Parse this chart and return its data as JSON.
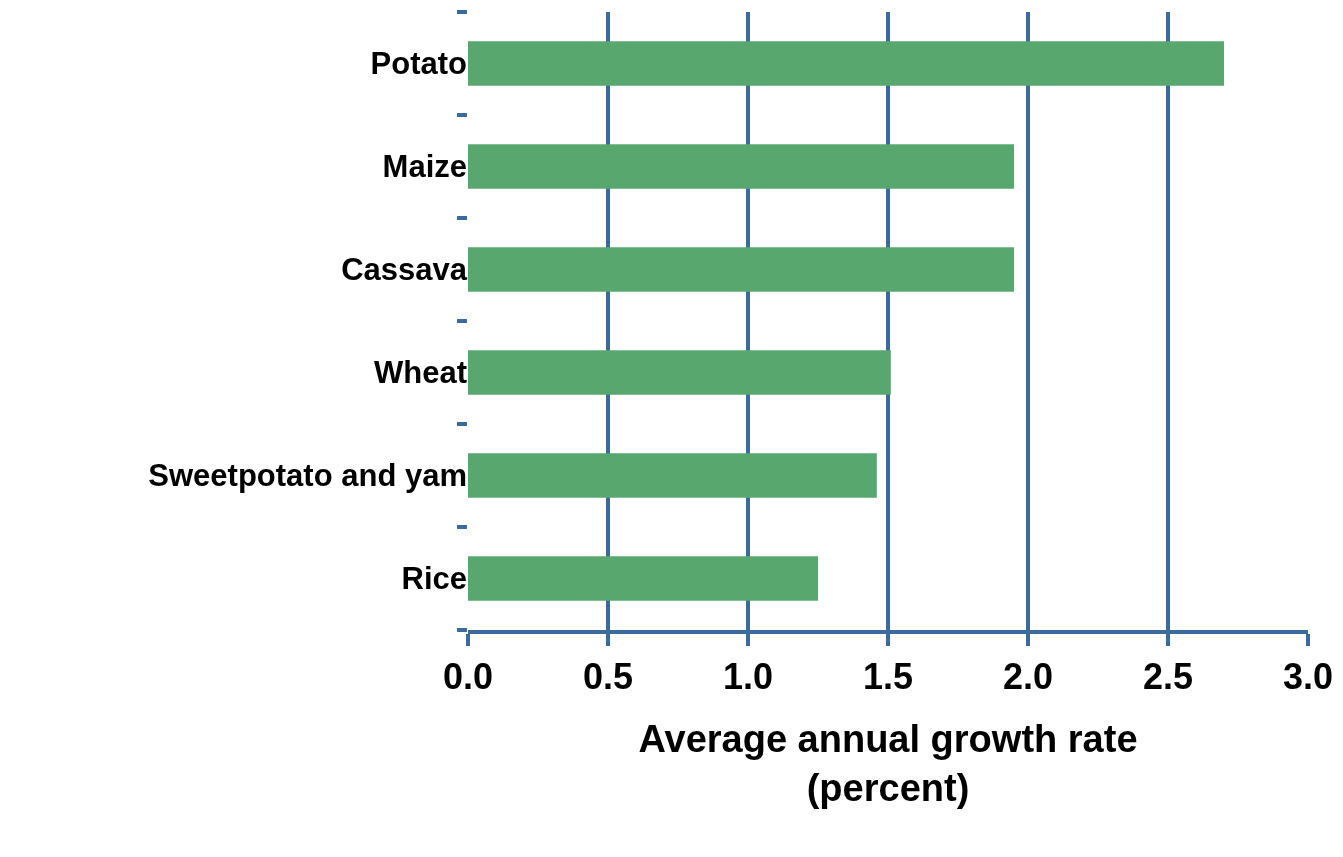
{
  "chart_data": {
    "type": "bar",
    "orientation": "horizontal",
    "categories": [
      "Potato",
      "Maize",
      "Cassava",
      "Wheat",
      "Sweetpotato and yam",
      "Rice"
    ],
    "values": [
      2.7,
      1.95,
      1.95,
      1.51,
      1.46,
      1.25
    ],
    "color": "#58a76f",
    "xlim": [
      0,
      3
    ],
    "xticks": [
      {
        "value": 0,
        "label": "0.0"
      },
      {
        "value": 0.5,
        "label": "0.5"
      },
      {
        "value": 1,
        "label": "1.0"
      },
      {
        "value": 1.5,
        "label": "1.5"
      },
      {
        "value": 2,
        "label": "2.0"
      },
      {
        "value": 2.5,
        "label": "2.5"
      },
      {
        "value": 3,
        "label": "3.0"
      }
    ],
    "xlabel": "Average annual growth rate\n(percent)",
    "grid": "x"
  }
}
